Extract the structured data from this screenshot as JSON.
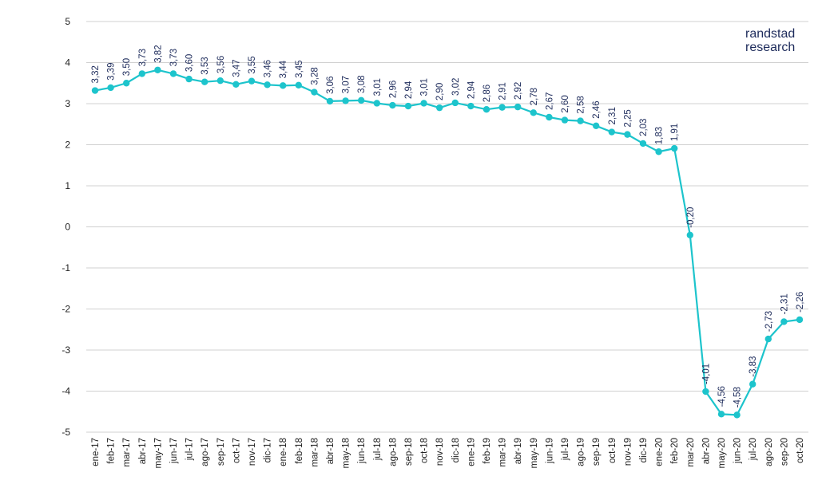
{
  "brand": {
    "line1": "randstad",
    "line2": "research"
  },
  "colors": {
    "series": "#1dc4cc",
    "grid": "#d0d0d0",
    "text": "#1d2b5b",
    "axisText": "#222222"
  },
  "chart_data": {
    "type": "line",
    "title": "",
    "xlabel": "",
    "ylabel": "",
    "ylim": [
      -5,
      5
    ],
    "yticks": [
      "5",
      "4",
      "3",
      "2",
      "1",
      "0",
      "-1",
      "-2",
      "-3",
      "-4",
      "-5"
    ],
    "ytick_values": [
      5,
      4,
      3,
      2,
      1,
      0,
      -1,
      -2,
      -3,
      -4,
      -5
    ],
    "grid": true,
    "legend": "none",
    "categories": [
      "ene-17",
      "feb-17",
      "mar-17",
      "abr-17",
      "may-17",
      "jun-17",
      "jul-17",
      "ago-17",
      "sep-17",
      "oct-17",
      "nov-17",
      "dic-17",
      "ene-18",
      "feb-18",
      "mar-18",
      "abr-18",
      "may-18",
      "jun-18",
      "jul-18",
      "ago-18",
      "sep-18",
      "oct-18",
      "nov-18",
      "dic-18",
      "ene-19",
      "feb-19",
      "mar-19",
      "abr-19",
      "may-19",
      "jun-19",
      "jul-19",
      "ago-19",
      "sep-19",
      "oct-19",
      "nov-19",
      "dic-19",
      "ene-20",
      "feb-20",
      "mar-20",
      "abr-20",
      "may-20",
      "jun-20",
      "jul-20",
      "ago-20",
      "sep-20",
      "oct-20"
    ],
    "values": [
      3.32,
      3.39,
      3.5,
      3.73,
      3.82,
      3.73,
      3.6,
      3.53,
      3.56,
      3.47,
      3.55,
      3.46,
      3.44,
      3.45,
      3.28,
      3.06,
      3.07,
      3.08,
      3.01,
      2.96,
      2.94,
      3.01,
      2.9,
      3.02,
      2.94,
      2.86,
      2.91,
      2.92,
      2.78,
      2.67,
      2.6,
      2.58,
      2.46,
      2.31,
      2.25,
      2.03,
      1.83,
      1.91,
      -0.2,
      -4.01,
      -4.56,
      -4.58,
      -3.83,
      -2.73,
      -2.31,
      -2.26
    ],
    "data_labels": [
      "3,32",
      "3,39",
      "3,50",
      "3,73",
      "3,82",
      "3,73",
      "3,60",
      "3,53",
      "3,56",
      "3,47",
      "3,55",
      "3,46",
      "3,44",
      "3,45",
      "3,28",
      "3,06",
      "3,07",
      "3,08",
      "3,01",
      "2,96",
      "2,94",
      "3,01",
      "2,90",
      "3,02",
      "2,94",
      "2,86",
      "2,91",
      "2,92",
      "2,78",
      "2,67",
      "2,60",
      "2,58",
      "2,46",
      "2,31",
      "2,25",
      "2,03",
      "1,83",
      "1,91",
      "-0,20",
      "-4,01",
      "-4,56",
      "-4,58",
      "-3,83",
      "-2,73",
      "-2,31",
      "-2,26"
    ]
  }
}
